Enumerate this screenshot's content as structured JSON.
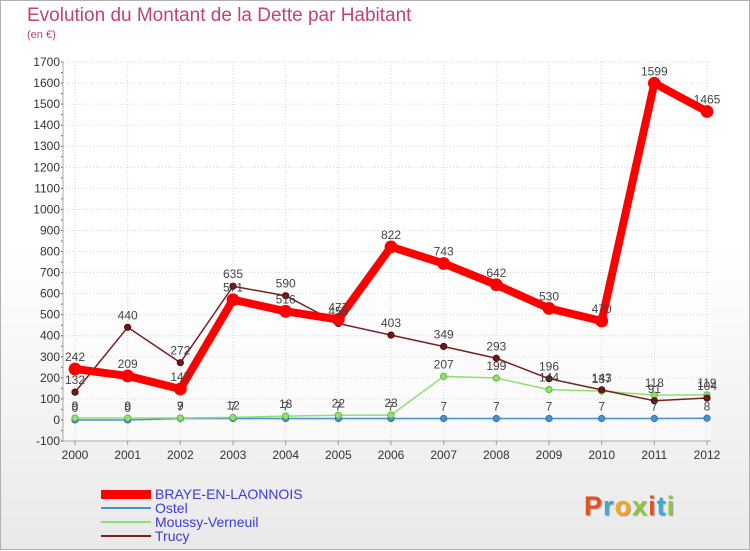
{
  "header": {
    "title": "Evolution du Montant de la Dette par Habitant",
    "subtitle": "(en €)"
  },
  "brand": {
    "letters": [
      "P",
      "r",
      "o",
      "x",
      "i",
      "t",
      "i"
    ],
    "colors": [
      "#e8501e",
      "#39a9dc",
      "#f5a81c",
      "#8dc63f",
      "#e8501e",
      "#39a9dc",
      "#8dc63f"
    ]
  },
  "chart_data": {
    "type": "line",
    "x": [
      2000,
      2001,
      2002,
      2003,
      2004,
      2005,
      2006,
      2007,
      2008,
      2009,
      2010,
      2011,
      2012
    ],
    "ylim": [
      -100,
      1700
    ],
    "yticks": [
      -100,
      0,
      100,
      200,
      300,
      400,
      500,
      600,
      700,
      800,
      900,
      1000,
      1100,
      1200,
      1300,
      1400,
      1500,
      1600,
      1700
    ],
    "grid": true,
    "legend": "bottom-left",
    "series": [
      {
        "name": "Ostel",
        "color": "#4a8fcf",
        "values": [
          0,
          0,
          7,
          7,
          7,
          7,
          7,
          7,
          7,
          7,
          7,
          7,
          8
        ],
        "labels": [
          "0",
          "0",
          "7",
          "7",
          "7",
          "7",
          "7",
          "7",
          "7",
          "7",
          "7",
          "7",
          "8"
        ]
      },
      {
        "name": "Moussy-Verneuil",
        "color": "#90e070",
        "values": [
          9,
          9,
          9,
          12,
          18,
          22,
          23,
          207,
          199,
          144,
          137,
          118,
          119
        ],
        "labels": [
          "9",
          "9",
          "9",
          "12",
          "18",
          "22",
          "23",
          "207",
          "199",
          "144",
          "137",
          "118",
          "119"
        ]
      },
      {
        "name": "Trucy",
        "color": "#7a2020",
        "values": [
          132,
          440,
          272,
          635,
          590,
          458,
          403,
          349,
          293,
          196,
          143,
          91,
          104
        ],
        "labels": [
          "132",
          "440",
          "272",
          "635",
          "590",
          "458",
          "403",
          "349",
          "293",
          "196",
          "143",
          "91",
          "104"
        ]
      },
      {
        "name": "BRAYE-EN-LAONNOIS",
        "color": "#ff0000",
        "values": [
          242,
          209,
          147,
          571,
          516,
          477,
          822,
          743,
          642,
          530,
          470,
          1599,
          1465
        ],
        "labels": [
          "242",
          "209",
          "147",
          "571",
          "516",
          "477",
          "822",
          "743",
          "642",
          "530",
          "470",
          "1599",
          "1465"
        ]
      }
    ],
    "legend_order": [
      "BRAYE-EN-LAONNOIS",
      "Ostel",
      "Moussy-Verneuil",
      "Trucy"
    ]
  }
}
